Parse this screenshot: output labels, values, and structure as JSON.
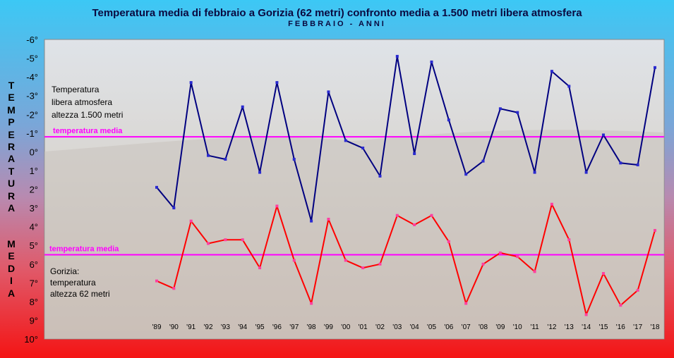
{
  "chart_data": {
    "type": "line",
    "title": "Temperatura media di febbraio a Gorizia (62 metri) confronto media a 1.500 metri libera atmosfera",
    "subtitle": "FEBBRAIO - ANNI",
    "ylabel_top": "TEMPERATURA",
    "ylabel_bottom": "MEDIA",
    "categories": [
      "'89",
      "'90",
      "'91",
      "'92",
      "'93",
      "'94",
      "'95",
      "'96",
      "'97",
      "'98",
      "'99",
      "'00",
      "'01",
      "'02",
      "'03",
      "'04",
      "'05",
      "'06",
      "'07",
      "'08",
      "'09",
      "'10",
      "'11",
      "'12",
      "'13",
      "'14",
      "'15",
      "'16",
      "'17",
      "'18"
    ],
    "y_tick_labels": [
      "-6°",
      "-5°",
      "-4°",
      "-3°",
      "-2°",
      "-1°",
      "0°",
      "1°",
      "2°",
      "3°",
      "4°",
      "5°",
      "6°",
      "7°",
      "8°",
      "9°",
      "10°"
    ],
    "ylim": [
      -6,
      10
    ],
    "y_inverted": true,
    "grid": false,
    "series": [
      {
        "label_lines": [
          "Temperatura",
          "libera atmosfera",
          "altezza 1.500 metri"
        ],
        "color": "#000080",
        "values": [
          1.9,
          3.0,
          -3.7,
          0.2,
          0.4,
          -2.4,
          1.1,
          -3.7,
          0.4,
          3.7,
          -3.2,
          -0.6,
          -0.2,
          1.3,
          -5.1,
          0.1,
          -4.8,
          -1.7,
          1.2,
          0.5,
          -2.3,
          -2.1,
          1.1,
          -4.3,
          -3.5,
          1.1,
          -0.9,
          0.6,
          0.7,
          -4.5
        ]
      },
      {
        "label_lines": [
          "Gorizia:",
          "temperatura",
          "altezza  62 metri"
        ],
        "color": "#ff0000",
        "values": [
          6.9,
          7.3,
          3.7,
          4.9,
          4.7,
          4.7,
          6.2,
          2.9,
          5.8,
          8.1,
          3.6,
          5.8,
          6.2,
          6.0,
          3.4,
          3.9,
          3.4,
          4.8,
          8.1,
          6.0,
          5.4,
          5.6,
          6.4,
          2.8,
          4.7,
          8.7,
          6.5,
          8.2,
          7.4,
          4.2
        ]
      }
    ],
    "reference_lines": [
      {
        "label": "temperatura media",
        "value": -0.8,
        "color": "#ff00ff"
      },
      {
        "label": "temperatura media",
        "value": 5.5,
        "color": "#ff00ff"
      }
    ]
  }
}
